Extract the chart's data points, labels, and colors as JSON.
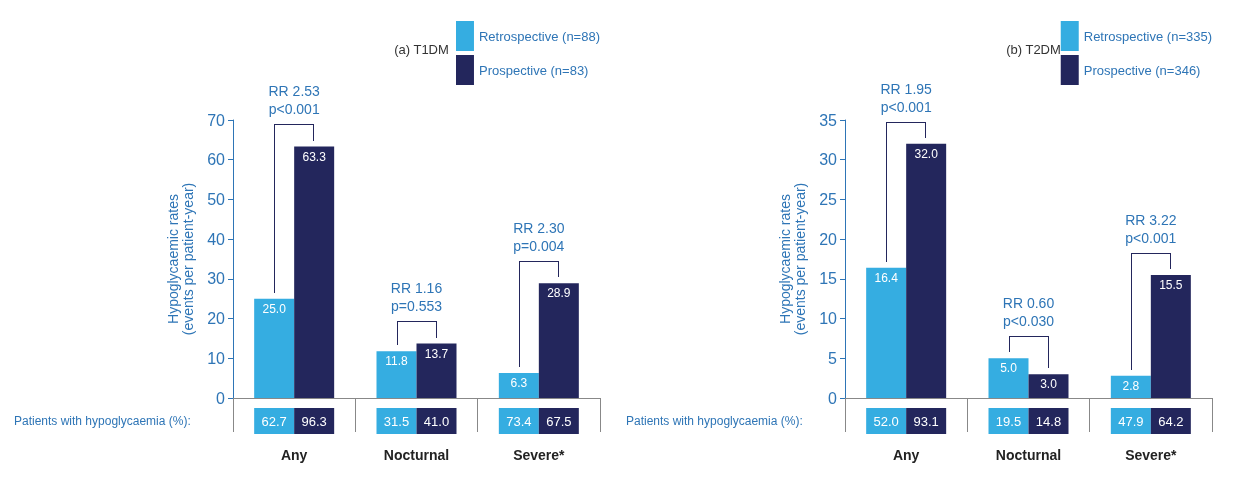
{
  "chart_data": [
    {
      "type": "bar",
      "title": "(a) T1DM",
      "ylabel": "Hypoglycaemic rates\n(events per patient-year)",
      "categories": [
        "Any",
        "Nocturnal",
        "Severe*"
      ],
      "series": [
        {
          "name": "Retrospective (n=88)",
          "color": "#35ade1",
          "values": [
            25.0,
            11.8,
            6.3
          ],
          "value_labels": [
            "25.0",
            "11.8",
            "6.3"
          ]
        },
        {
          "name": "Prospective (n=83)",
          "color": "#23265c",
          "values": [
            63.3,
            13.7,
            28.9
          ],
          "value_labels": [
            "63.3",
            "13.7",
            "28.9"
          ]
        }
      ],
      "ylim": [
        0,
        70
      ],
      "yticks": [
        0,
        10,
        20,
        30,
        40,
        50,
        60,
        70
      ],
      "grid": false,
      "legend": "top right",
      "annotations": [
        "Patients with hypoglycaemia (%):",
        {
          "text": "RR 2.53\np<0.001",
          "x": "Any",
          "y": 63.3
        },
        {
          "text": "RR 1.16\np=0.553",
          "x": "Nocturnal",
          "y": 13.7
        },
        {
          "text": "RR 2.30\np=0.004",
          "x": "Severe*",
          "y": 28.9
        },
        "62.7",
        "96.3",
        "31.5",
        "41.0",
        "73.4",
        "67.5"
      ]
    },
    {
      "type": "bar",
      "title": "(b) T2DM",
      "ylabel": "Hypoglycaemic rates\n(events per patient-year)",
      "categories": [
        "Any",
        "Nocturnal",
        "Severe*"
      ],
      "series": [
        {
          "name": "Retrospective (n=335)",
          "color": "#35ade1",
          "values": [
            16.4,
            5.0,
            2.8
          ],
          "value_labels": [
            "16.4",
            "5.0",
            "2.8"
          ]
        },
        {
          "name": "Prospective (n=346)",
          "color": "#23265c",
          "values": [
            32.0,
            3.0,
            15.5
          ],
          "value_labels": [
            "32.0",
            "3.0",
            "15.5"
          ]
        }
      ],
      "ylim": [
        0,
        35
      ],
      "yticks": [
        0,
        5,
        10,
        15,
        20,
        25,
        30,
        35
      ],
      "grid": false,
      "legend": "top right",
      "annotations": [
        "Patients with hypoglycaemia (%):",
        {
          "text": "RR 1.95\np<0.001",
          "x": "Any",
          "y": 32.0
        },
        {
          "text": "RR 0.60\np<0.030",
          "x": "Nocturnal",
          "y": 5.0
        },
        {
          "text": "RR 3.22\np<0.001",
          "x": "Severe*",
          "y": 15.5
        },
        "52.0",
        "93.1",
        "19.5",
        "14.8",
        "47.9",
        "64.2"
      ]
    }
  ]
}
